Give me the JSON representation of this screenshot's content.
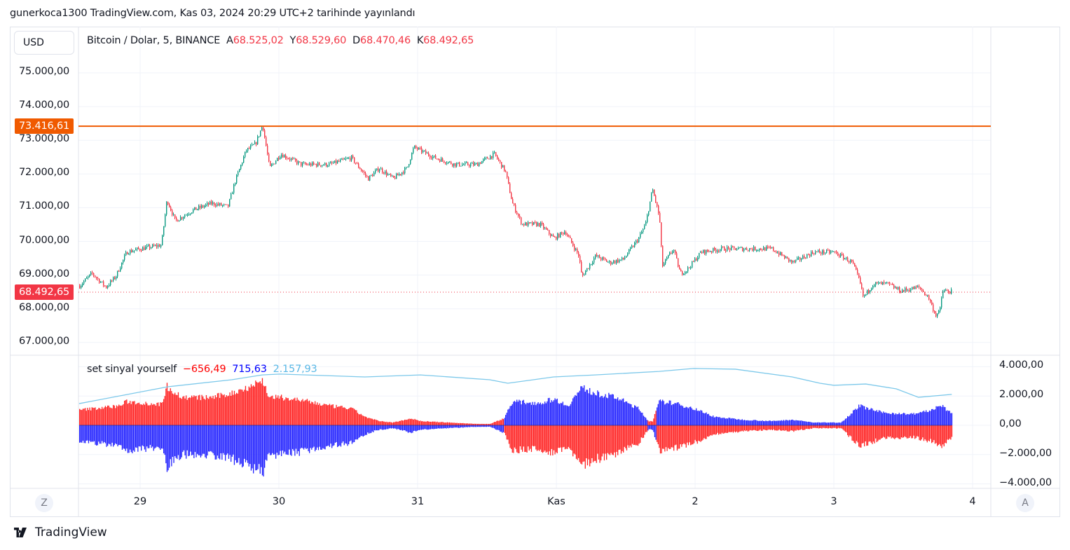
{
  "published": "gunerkoca1300 TradingView.com, Kas 03, 2024 20:29 UTC+2 tarihinde yayınlandı",
  "currency_button": "USD",
  "legend": {
    "symbol": "Bitcoin / Dolar, 5, BINANCE",
    "open_label": "A",
    "open": "68.525,02",
    "high_label": "Y",
    "high": "68.529,60",
    "low_label": "D",
    "low": "68.470,46",
    "close_label": "K",
    "close": "68.492,65"
  },
  "indicator": {
    "name": "set sinyal yourself",
    "v1": "−656,49",
    "v2": "715,63",
    "v3": "2.157,93",
    "colors": {
      "v1": "#ff0000",
      "v2": "#0000ff",
      "v3": "#5ab8e6"
    }
  },
  "price_axis": [
    "75.000,00",
    "74.000,00",
    "73.000,00",
    "72.000,00",
    "71.000,00",
    "70.000,00",
    "69.000,00",
    "68.000,00",
    "67.000,00"
  ],
  "horizontal_line": {
    "label": "73.416,61",
    "value": 73416.61,
    "color": "#f05a00"
  },
  "last_price": {
    "label": "68.492,65",
    "value": 68492.65,
    "color": "#f23645"
  },
  "indicator_axis": [
    "4.000,00",
    "2.000,00",
    "0,00",
    "−2.000,00",
    "−4.000,00"
  ],
  "time_axis": [
    "29",
    "30",
    "31",
    "Kas",
    "2",
    "3",
    "4"
  ],
  "scale_buttons": {
    "left": "Z",
    "right": "A"
  },
  "brand": "TradingView",
  "chart_data": {
    "type": "candlestick",
    "title": "Bitcoin / Dolar, 5, BINANCE",
    "x_unit": "days since Oct 29 00:00",
    "ylim": [
      66700,
      75700
    ],
    "price_path": [
      [
        -0.44,
        68680
      ],
      [
        -0.35,
        69050
      ],
      [
        -0.25,
        68640
      ],
      [
        -0.18,
        68950
      ],
      [
        -0.1,
        69680
      ],
      [
        0,
        69780
      ],
      [
        0.15,
        69890
      ],
      [
        0.19,
        71240
      ],
      [
        0.25,
        70610
      ],
      [
        0.38,
        70930
      ],
      [
        0.51,
        71130
      ],
      [
        0.63,
        71030
      ],
      [
        0.68,
        71760
      ],
      [
        0.76,
        72690
      ],
      [
        0.83,
        72900
      ],
      [
        0.88,
        73460
      ],
      [
        0.93,
        72170
      ],
      [
        1.01,
        72590
      ],
      [
        1.16,
        72280
      ],
      [
        1.36,
        72280
      ],
      [
        1.52,
        72480
      ],
      [
        1.64,
        71860
      ],
      [
        1.72,
        72170
      ],
      [
        1.82,
        71860
      ],
      [
        1.92,
        72170
      ],
      [
        1.97,
        72800
      ],
      [
        2.12,
        72480
      ],
      [
        2.27,
        72280
      ],
      [
        2.42,
        72280
      ],
      [
        2.55,
        72590
      ],
      [
        2.63,
        72070
      ],
      [
        2.68,
        71130
      ],
      [
        2.75,
        70510
      ],
      [
        2.88,
        70510
      ],
      [
        2.98,
        70090
      ],
      [
        3.06,
        70300
      ],
      [
        3.16,
        69570
      ],
      [
        3.18,
        68950
      ],
      [
        3.28,
        69570
      ],
      [
        3.38,
        69370
      ],
      [
        3.48,
        69470
      ],
      [
        3.59,
        70090
      ],
      [
        3.64,
        70510
      ],
      [
        3.69,
        71550
      ],
      [
        3.74,
        70720
      ],
      [
        3.76,
        69260
      ],
      [
        3.84,
        69780
      ],
      [
        3.89,
        69050
      ],
      [
        3.94,
        69160
      ],
      [
        4.04,
        69680
      ],
      [
        4.19,
        69780
      ],
      [
        4.39,
        69780
      ],
      [
        4.55,
        69780
      ],
      [
        4.7,
        69370
      ],
      [
        4.85,
        69680
      ],
      [
        5.0,
        69680
      ],
      [
        5.13,
        69370
      ],
      [
        5.18,
        68850
      ],
      [
        5.21,
        68330
      ],
      [
        5.28,
        68740
      ],
      [
        5.38,
        68740
      ],
      [
        5.48,
        68530
      ],
      [
        5.61,
        68640
      ],
      [
        5.68,
        68330
      ],
      [
        5.73,
        67810
      ],
      [
        5.76,
        67910
      ],
      [
        5.78,
        68530
      ],
      [
        5.86,
        68500
      ]
    ],
    "indicator": {
      "ylim": [
        -4000,
        4000
      ],
      "histogram_amplitude": [
        [
          -0.44,
          1100
        ],
        [
          -0.15,
          1400
        ],
        [
          -0.1,
          1700
        ],
        [
          0.15,
          1500
        ],
        [
          0.19,
          2800
        ],
        [
          0.3,
          2000
        ],
        [
          0.51,
          2000
        ],
        [
          0.66,
          2300
        ],
        [
          0.76,
          2700
        ],
        [
          0.88,
          3200
        ],
        [
          0.93,
          2000
        ],
        [
          1.01,
          2000
        ],
        [
          1.16,
          1800
        ],
        [
          1.36,
          1400
        ],
        [
          1.52,
          1200
        ],
        [
          1.62,
          600
        ],
        [
          1.72,
          300
        ],
        [
          1.82,
          200
        ],
        [
          1.95,
          500
        ],
        [
          2.02,
          300
        ],
        [
          2.22,
          200
        ],
        [
          2.42,
          100
        ],
        [
          2.52,
          100
        ],
        [
          2.62,
          500
        ],
        [
          2.68,
          1700
        ],
        [
          2.88,
          1600
        ],
        [
          2.98,
          1900
        ],
        [
          3.08,
          1400
        ],
        [
          3.18,
          2700
        ],
        [
          3.28,
          2300
        ],
        [
          3.43,
          2000
        ],
        [
          3.59,
          1200
        ],
        [
          3.66,
          300
        ],
        [
          3.69,
          300
        ],
        [
          3.74,
          1700
        ],
        [
          3.84,
          1600
        ],
        [
          3.99,
          1200
        ],
        [
          4.14,
          600
        ],
        [
          4.34,
          400
        ],
        [
          4.55,
          300
        ],
        [
          4.7,
          400
        ],
        [
          4.85,
          200
        ],
        [
          5.05,
          200
        ],
        [
          5.18,
          1400
        ],
        [
          5.35,
          900
        ],
        [
          5.56,
          800
        ],
        [
          5.71,
          1100
        ],
        [
          5.76,
          1500
        ],
        [
          5.85,
          800
        ]
      ],
      "histogram_direction": [
        {
          "from": -0.44,
          "to": 2.62,
          "positive": "red",
          "negative": "blue"
        },
        {
          "from": 2.62,
          "to": 3.65,
          "positive": "blue",
          "negative": "red"
        },
        {
          "from": 3.65,
          "to": 3.72,
          "positive": "red",
          "negative": "blue"
        },
        {
          "from": 3.72,
          "to": 5.86,
          "positive": "blue",
          "negative": "red"
        }
      ],
      "signal_line": [
        [
          -0.44,
          1480
        ],
        [
          0.2,
          2630
        ],
        [
          0.66,
          3110
        ],
        [
          0.88,
          3440
        ],
        [
          1.01,
          3500
        ],
        [
          1.62,
          3300
        ],
        [
          2.02,
          3440
        ],
        [
          2.52,
          3110
        ],
        [
          2.65,
          2870
        ],
        [
          2.98,
          3300
        ],
        [
          3.28,
          3440
        ],
        [
          3.74,
          3680
        ],
        [
          3.99,
          3880
        ],
        [
          4.29,
          3830
        ],
        [
          4.7,
          3300
        ],
        [
          4.9,
          2870
        ],
        [
          5.0,
          2730
        ],
        [
          5.23,
          2820
        ],
        [
          5.45,
          2490
        ],
        [
          5.61,
          1910
        ],
        [
          5.85,
          2110
        ]
      ]
    }
  }
}
